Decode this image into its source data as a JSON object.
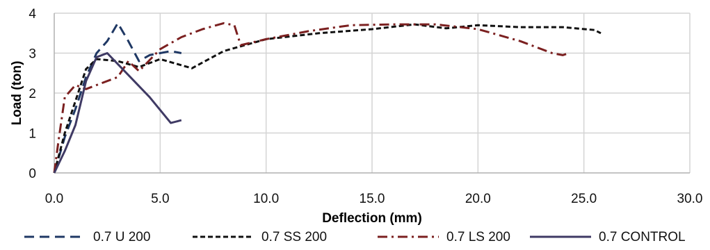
{
  "chart_data": {
    "type": "line",
    "title": "",
    "xlabel": "Deflection (mm)",
    "ylabel": "Load  (ton)",
    "xlim": [
      0,
      30
    ],
    "ylim": [
      0,
      4
    ],
    "x_ticks": [
      "0.0",
      "5.0",
      "10.0",
      "15.0",
      "20.0",
      "25.0",
      "30.0"
    ],
    "y_ticks": [
      "0",
      "1",
      "2",
      "3",
      "4"
    ],
    "grid": "both",
    "legend_position": "bottom",
    "series": [
      {
        "name": "0.7 U 200",
        "color": "#1f3864",
        "dash": "dashed",
        "points": [
          [
            0,
            0
          ],
          [
            0.5,
            0.9
          ],
          [
            1.0,
            1.6
          ],
          [
            1.5,
            2.4
          ],
          [
            2.0,
            3.0
          ],
          [
            2.5,
            3.3
          ],
          [
            3.0,
            3.75
          ],
          [
            3.5,
            3.3
          ],
          [
            4.0,
            2.8
          ],
          [
            4.5,
            2.95
          ],
          [
            5.0,
            3.0
          ],
          [
            5.5,
            3.05
          ],
          [
            6.0,
            3.0
          ]
        ]
      },
      {
        "name": "0.7 SS 200",
        "color": "#111111",
        "dash": "short-dash",
        "points": [
          [
            0,
            0
          ],
          [
            0.5,
            1.0
          ],
          [
            1.0,
            1.8
          ],
          [
            1.5,
            2.6
          ],
          [
            2.0,
            2.85
          ],
          [
            3.0,
            2.8
          ],
          [
            4.0,
            2.65
          ],
          [
            5.0,
            2.85
          ],
          [
            6.5,
            2.62
          ],
          [
            8.0,
            3.05
          ],
          [
            10.0,
            3.35
          ],
          [
            12.5,
            3.5
          ],
          [
            15.0,
            3.6
          ],
          [
            17.0,
            3.72
          ],
          [
            18.5,
            3.62
          ],
          [
            20.0,
            3.7
          ],
          [
            22.0,
            3.65
          ],
          [
            24.0,
            3.65
          ],
          [
            25.5,
            3.58
          ],
          [
            25.8,
            3.5
          ]
        ]
      },
      {
        "name": "0.7 LS 200",
        "color": "#7b2020",
        "dash": "dash-dot",
        "points": [
          [
            0,
            0
          ],
          [
            0.2,
            0.8
          ],
          [
            0.5,
            1.9
          ],
          [
            1.0,
            2.2
          ],
          [
            1.5,
            2.1
          ],
          [
            2.0,
            2.2
          ],
          [
            3.0,
            2.4
          ],
          [
            3.5,
            2.8
          ],
          [
            4.0,
            2.55
          ],
          [
            5.0,
            3.1
          ],
          [
            6.0,
            3.4
          ],
          [
            7.0,
            3.6
          ],
          [
            8.0,
            3.75
          ],
          [
            8.5,
            3.7
          ],
          [
            8.8,
            3.2
          ],
          [
            10.0,
            3.35
          ],
          [
            12.0,
            3.55
          ],
          [
            14.0,
            3.7
          ],
          [
            16.0,
            3.72
          ],
          [
            18.0,
            3.72
          ],
          [
            20.0,
            3.6
          ],
          [
            22.0,
            3.3
          ],
          [
            23.5,
            3.0
          ],
          [
            24.0,
            2.95
          ],
          [
            24.3,
            3.0
          ]
        ]
      },
      {
        "name": "0.7 CONTROL",
        "color": "#3f3a64",
        "dash": "solid",
        "points": [
          [
            0,
            0
          ],
          [
            0.5,
            0.55
          ],
          [
            1.0,
            1.2
          ],
          [
            1.5,
            2.3
          ],
          [
            2.0,
            2.9
          ],
          [
            2.5,
            3.0
          ],
          [
            3.5,
            2.45
          ],
          [
            4.5,
            1.9
          ],
          [
            5.5,
            1.25
          ],
          [
            6.0,
            1.32
          ]
        ]
      }
    ]
  }
}
